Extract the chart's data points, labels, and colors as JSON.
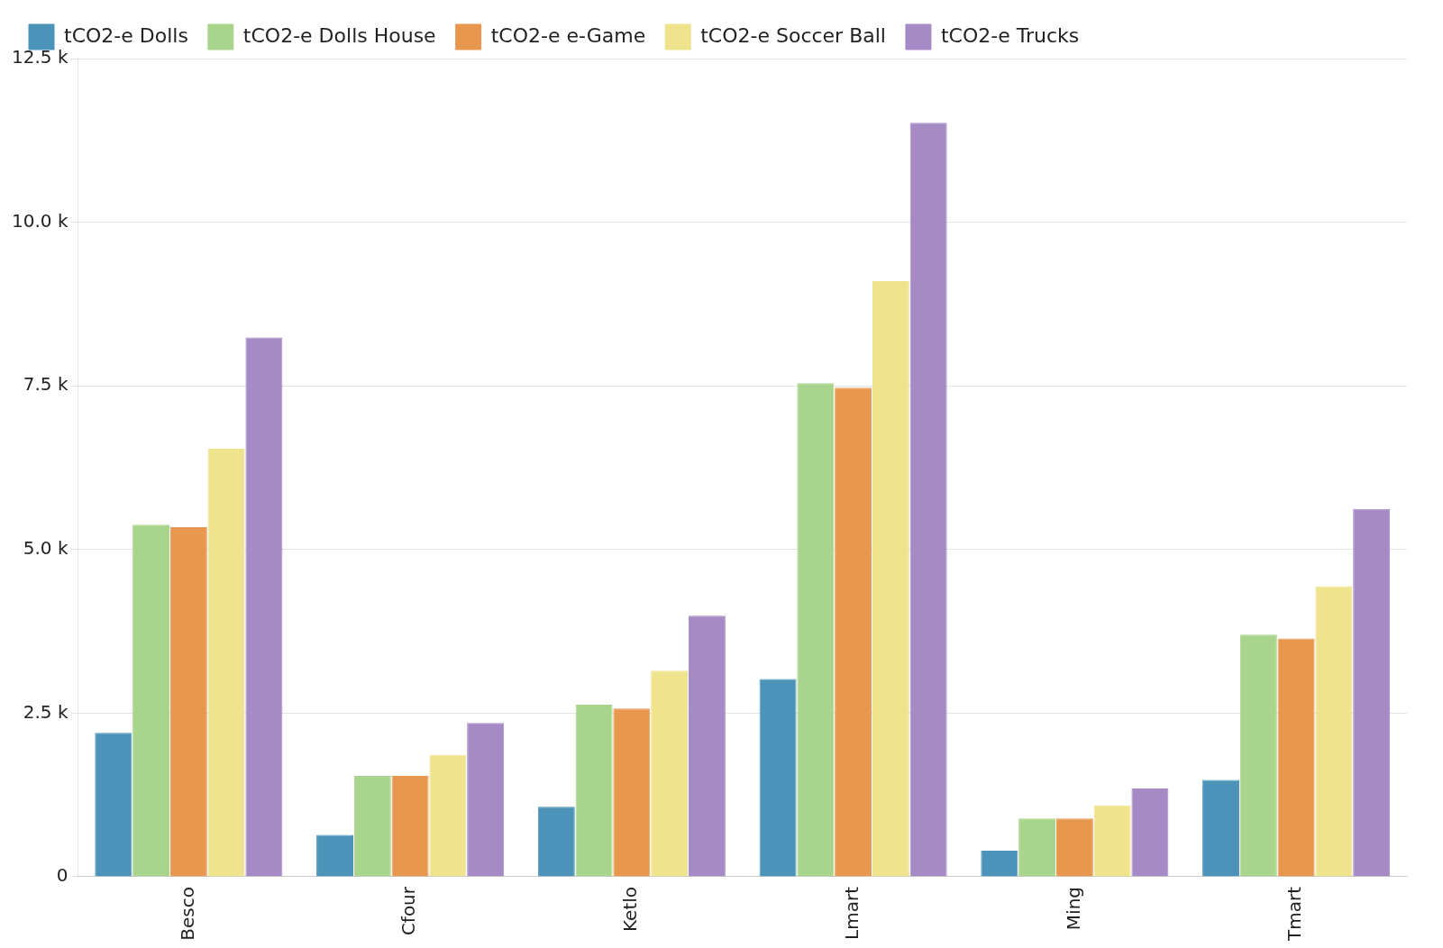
{
  "chart_data": {
    "type": "bar",
    "categories": [
      "Besco",
      "Cfour",
      "Ketlo",
      "Lmart",
      "Ming",
      "Tmart"
    ],
    "series": [
      {
        "name": "tCO2-e Dolls",
        "color": "#4b93b9",
        "values": [
          2200,
          640,
          1070,
          3020,
          400,
          1480
        ]
      },
      {
        "name": "tCO2-e Dolls House",
        "color": "#a9d48b",
        "values": [
          5380,
          1540,
          2630,
          7540,
          890,
          3700
        ]
      },
      {
        "name": "tCO2-e e-Game",
        "color": "#e8974f",
        "values": [
          5340,
          1540,
          2570,
          7470,
          890,
          3640
        ]
      },
      {
        "name": "tCO2-e Soccer Ball",
        "color": "#efe38e",
        "values": [
          6540,
          1860,
          3150,
          9100,
          1090,
          4440
        ]
      },
      {
        "name": "tCO2-e Trucks",
        "color": "#a58ac6",
        "values": [
          8240,
          2350,
          3990,
          11520,
          1350,
          5620
        ]
      }
    ],
    "ylim": [
      0,
      12500
    ],
    "yticks": [
      {
        "value": 0,
        "label": "0"
      },
      {
        "value": 2500,
        "label": "2.5 k"
      },
      {
        "value": 5000,
        "label": "5.0 k"
      },
      {
        "value": 7500,
        "label": "7.5 k"
      },
      {
        "value": 10000,
        "label": "10.0 k"
      },
      {
        "value": 12500,
        "label": "12.5 k"
      }
    ],
    "grid": "y",
    "legend": "top"
  }
}
